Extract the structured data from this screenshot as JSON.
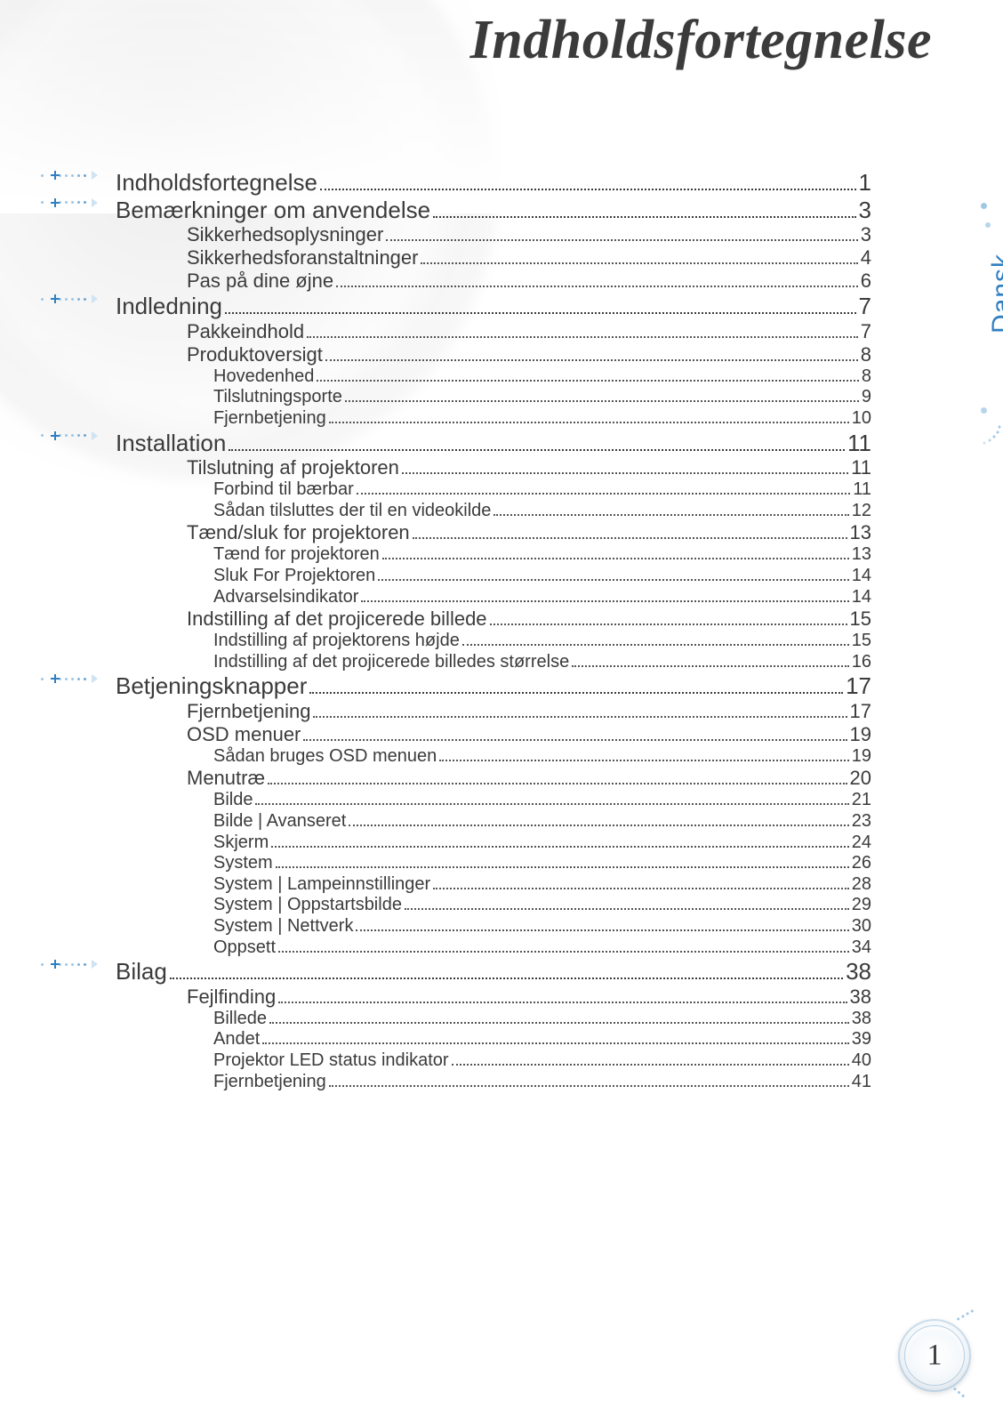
{
  "title": "Indholdsfortegnelse",
  "language_label": "Dansk",
  "page_number": "1",
  "colors": {
    "text": "#3b3b3b",
    "accent": "#2f7fc1",
    "dot_light": "#9fc7e6",
    "background": "#ffffff"
  },
  "typography": {
    "title_font": "Palatino Linotype, serif",
    "title_fontsize_pt": 47,
    "title_style": "italic",
    "body_font": "Arial, sans-serif",
    "lvl0_fontsize_pt": 20,
    "lvl1_fontsize_pt": 17,
    "lvl2_fontsize_pt": 15
  },
  "toc": [
    {
      "level": 0,
      "label": "Indholdsfortegnelse",
      "page": "1"
    },
    {
      "level": 0,
      "label": "Bemærkninger om anvendelse",
      "page": "3"
    },
    {
      "level": 1,
      "label": "Sikkerhedsoplysninger",
      "page": "3"
    },
    {
      "level": 1,
      "label": "Sikkerhedsforanstaltninger",
      "page": "4"
    },
    {
      "level": 1,
      "label": "Pas på dine øjne",
      "page": "6"
    },
    {
      "level": 0,
      "label": "Indledning",
      "page": "7"
    },
    {
      "level": 1,
      "label": "Pakkeindhold",
      "page": "7"
    },
    {
      "level": 1,
      "label": "Produktoversigt",
      "page": "8"
    },
    {
      "level": 2,
      "label": "Hovedenhed",
      "page": "8"
    },
    {
      "level": 2,
      "label": "Tilslutningsporte",
      "page": "9"
    },
    {
      "level": 2,
      "label": "Fjernbetjening",
      "page": "10"
    },
    {
      "level": 0,
      "label": "Installation",
      "page": "11"
    },
    {
      "level": 1,
      "label": "Tilslutning af projektoren",
      "page": "11"
    },
    {
      "level": 2,
      "label": "Forbind til bærbar",
      "page": "11"
    },
    {
      "level": 2,
      "label": "Sådan tilsluttes der til en videokilde",
      "page": "12"
    },
    {
      "level": 1,
      "label": "Tænd/sluk for projektoren",
      "page": "13"
    },
    {
      "level": 2,
      "label": "Tænd for projektoren",
      "page": "13"
    },
    {
      "level": 2,
      "label": "Sluk For Projektoren",
      "page": "14"
    },
    {
      "level": 2,
      "label": "Advarselsindikator",
      "page": "14"
    },
    {
      "level": 1,
      "label": "Indstilling af det projicerede billede",
      "page": "15"
    },
    {
      "level": 2,
      "label": "Indstilling af projektorens højde",
      "page": "15"
    },
    {
      "level": 2,
      "label": "Indstilling af det projicerede billedes størrelse",
      "page": "16"
    },
    {
      "level": 0,
      "label": "Betjeningsknapper",
      "page": "17"
    },
    {
      "level": 1,
      "label": "Fjernbetjening",
      "page": "17"
    },
    {
      "level": 1,
      "label": "OSD menuer",
      "page": "19"
    },
    {
      "level": 2,
      "label": "Sådan bruges OSD menuen",
      "page": "19"
    },
    {
      "level": 1,
      "label": "Menutræ",
      "page": "20"
    },
    {
      "level": 2,
      "label": "Bilde",
      "page": "21"
    },
    {
      "level": 2,
      "label": "Bilde | Avanseret",
      "page": "23"
    },
    {
      "level": 2,
      "label": "Skjerm",
      "page": "24"
    },
    {
      "level": 2,
      "label": "System",
      "page": "26"
    },
    {
      "level": 2,
      "label": "System | Lampeinnstillinger",
      "page": "28"
    },
    {
      "level": 2,
      "label": "System | Oppstartsbilde",
      "page": "29"
    },
    {
      "level": 2,
      "label": "System | Nettverk",
      "page": "30"
    },
    {
      "level": 2,
      "label": "Oppsett",
      "page": "34"
    },
    {
      "level": 0,
      "label": "Bilag",
      "page": "38"
    },
    {
      "level": 1,
      "label": "Fejlfinding",
      "page": "38"
    },
    {
      "level": 2,
      "label": "Billede",
      "page": "38"
    },
    {
      "level": 2,
      "label": "Andet",
      "page": "39"
    },
    {
      "level": 2,
      "label": "Projektor LED status indikator",
      "page": "40"
    },
    {
      "level": 2,
      "label": "Fjernbetjening",
      "page": "41"
    }
  ]
}
